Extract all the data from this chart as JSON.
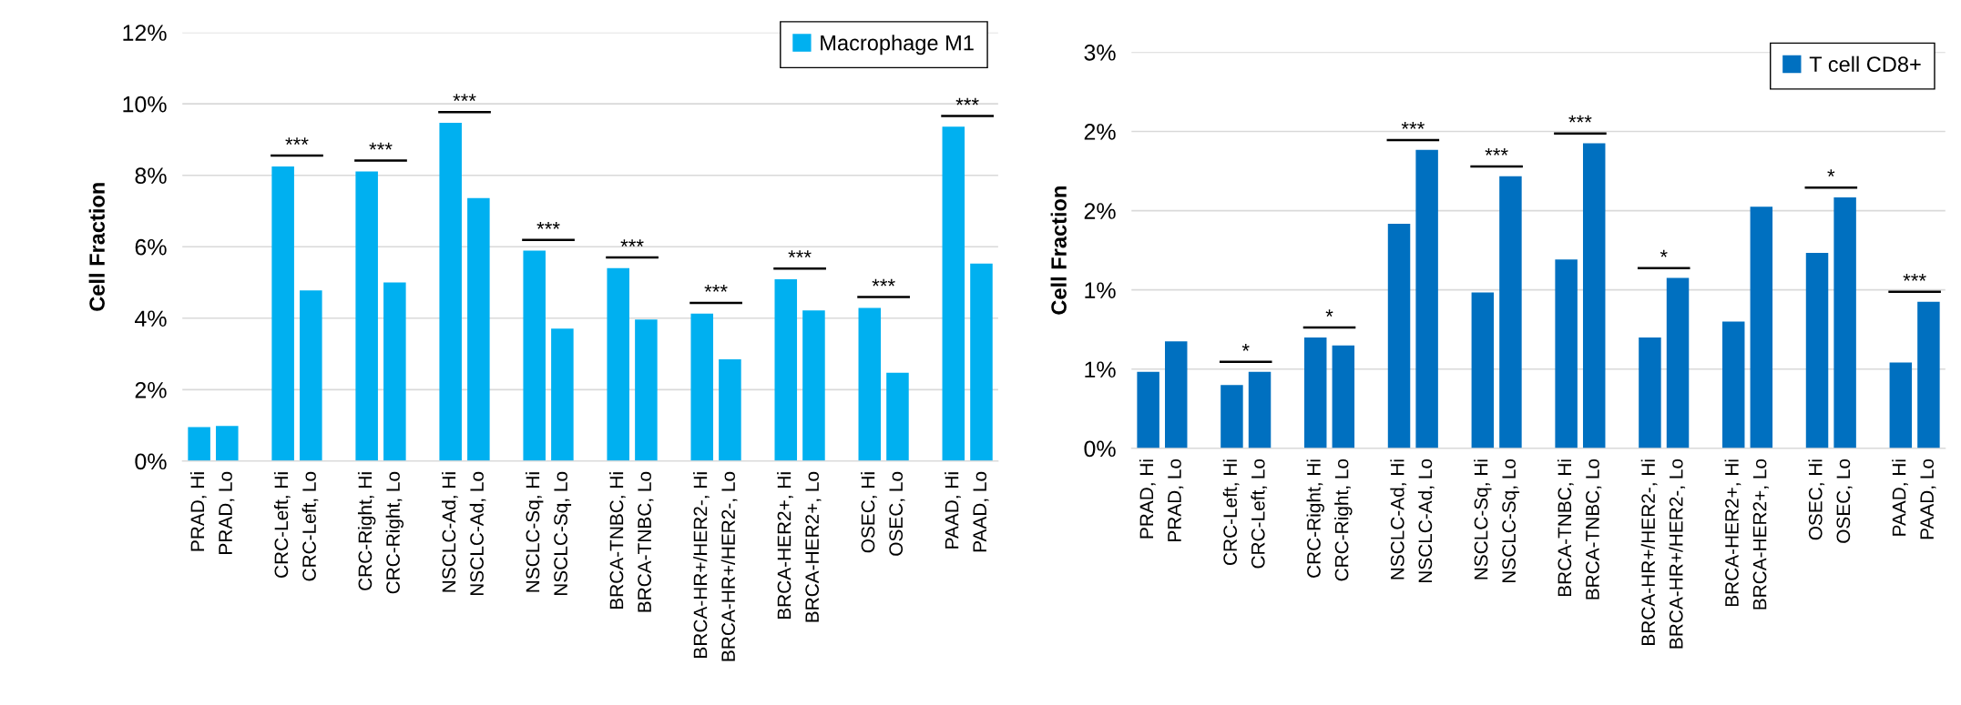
{
  "chart_data": [
    {
      "type": "bar",
      "ylabel": "Cell Fraction",
      "categories": [
        "PRAD, Hi",
        "PRAD, Lo",
        null,
        "CRC-Left, Hi",
        "CRC-Left, Lo",
        null,
        "CRC-Right, Hi",
        "CRC-Right, Lo",
        null,
        "NSCLC-Ad, Hi",
        "NSCLC-Ad, Lo",
        null,
        "NSCLC-Sq, Hi",
        "NSCLC-Sq, Lo",
        null,
        "BRCA-TNBC, Hi",
        "BRCA-TNBC, Lo",
        null,
        "BRCA-HR+/HER2-, Hi",
        "BRCA-HR+/HER2-, Lo",
        null,
        "BRCA-HER2+, Hi",
        "BRCA-HER2+, Lo",
        null,
        "OSEC, Hi",
        "OSEC, Lo",
        null,
        "PAAD, Hi",
        "PAAD, Lo"
      ],
      "series": [
        {
          "name": "Macrophage M1",
          "color": "#00b0f0",
          "values": [
            0.95,
            0.98,
            null,
            8.25,
            4.78,
            null,
            8.11,
            5.0,
            null,
            9.47,
            7.36,
            null,
            5.89,
            3.71,
            null,
            5.4,
            3.96,
            null,
            4.13,
            2.85,
            null,
            5.09,
            4.22,
            null,
            4.29,
            2.47,
            null,
            9.36,
            5.53
          ]
        }
      ],
      "ylim": [
        0,
        12
      ],
      "yticks": [
        {
          "value": 0,
          "label": "0%"
        },
        {
          "value": 2,
          "label": "2%"
        },
        {
          "value": 4,
          "label": "4%"
        },
        {
          "value": 6,
          "label": "6%"
        },
        {
          "value": 8,
          "label": "8%"
        },
        {
          "value": 10,
          "label": "10%"
        },
        {
          "value": 12,
          "label": "12%"
        }
      ],
      "grid": "y",
      "legend": "top right",
      "annotations": [
        null,
        "***",
        "***",
        "***",
        "***",
        "***",
        "***",
        "***",
        "***",
        "***"
      ]
    },
    {
      "type": "bar",
      "ylabel": "Cell Fraction",
      "categories": [
        "PRAD, Hi",
        "PRAD, Lo",
        null,
        "CRC-Left, Hi",
        "CRC-Left, Lo",
        null,
        "CRC-Right, Hi",
        "CRC-Right, Lo",
        null,
        "NSCLC-Ad, Hi",
        "NSCLC-Ad, Lo",
        null,
        "NSCLC-Sq, Hi",
        "NSCLC-Sq, Lo",
        null,
        "BRCA-TNBC, Hi",
        "BRCA-TNBC, Lo",
        null,
        "BRCA-HR+/HER2-, Hi",
        "BRCA-HR+/HER2-, Lo",
        null,
        "BRCA-HER2+, Hi",
        "BRCA-HER2+, Lo",
        null,
        "OSEC, Hi",
        "OSEC, Lo",
        null,
        "PAAD, Hi",
        "PAAD, Lo"
      ],
      "series": [
        {
          "name": "T cell CD8+",
          "color": "#0070c0",
          "values": [
            0.58,
            0.81,
            null,
            0.48,
            0.58,
            null,
            0.84,
            0.78,
            null,
            1.7,
            2.26,
            null,
            1.18,
            2.06,
            null,
            1.43,
            2.31,
            null,
            0.84,
            1.29,
            null,
            0.96,
            1.83,
            null,
            1.48,
            1.9,
            null,
            0.65,
            1.11
          ]
        }
      ],
      "ylim": [
        0,
        3
      ],
      "yticks": [
        {
          "value": 0,
          "label": "0%"
        },
        {
          "value": 0.6,
          "label": "1%"
        },
        {
          "value": 1.2,
          "label": "1%"
        },
        {
          "value": 1.8,
          "label": "2%"
        },
        {
          "value": 2.4,
          "label": "2%"
        },
        {
          "value": 3,
          "label": "3%"
        }
      ],
      "grid": "y",
      "legend": "top right",
      "annotations": [
        null,
        "*",
        "*",
        "***",
        "***",
        "***",
        "*",
        null,
        "*",
        "***"
      ]
    }
  ]
}
